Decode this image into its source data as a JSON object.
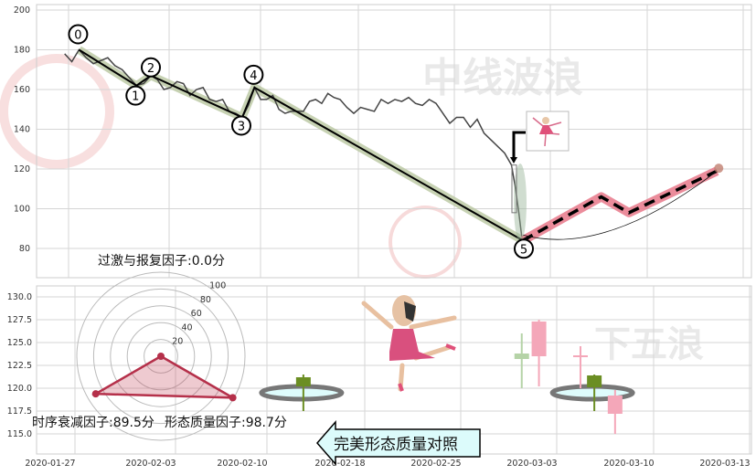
{
  "watermarks": {
    "top": "中线波浪",
    "bottom_right": "下五浪"
  },
  "colors": {
    "zigzag": "#000000",
    "zigzag_halo": "#b9c7a0",
    "forecast": "#e8788a",
    "forecast_dash": "#000000",
    "price": "#444444",
    "candle_up": "#f4a7b9",
    "candle_down": "#6b8e23",
    "candle_down_light": "#b5d3a7",
    "radar": "#b5304a"
  },
  "chart_data": [
    {
      "type": "line",
      "ylim": [
        63,
        200
      ],
      "yticks": [
        200,
        180,
        160,
        140,
        120,
        100,
        80
      ],
      "grid": true,
      "price": [
        [
          "2020-01-28",
          178
        ],
        [
          "2020-01-28T12:00",
          174
        ],
        [
          "2020-01-29",
          180
        ],
        [
          "2020-01-29T12:00",
          176
        ],
        [
          "2020-01-30",
          173
        ],
        [
          "2020-01-31",
          176
        ],
        [
          "2020-01-31T12:00",
          172
        ],
        [
          "2020-02-01",
          170
        ],
        [
          "2020-02-01T12:00",
          166
        ],
        [
          "2020-02-02",
          162
        ],
        [
          "2020-02-02T12:00",
          163
        ],
        [
          "2020-02-03",
          167
        ],
        [
          "2020-02-03T12:00",
          165
        ],
        [
          "2020-02-04",
          160
        ],
        [
          "2020-02-04T12:00",
          161
        ],
        [
          "2020-02-05",
          164
        ],
        [
          "2020-02-05T12:00",
          163
        ],
        [
          "2020-02-06",
          157
        ],
        [
          "2020-02-06T12:00",
          160
        ],
        [
          "2020-02-07",
          161
        ],
        [
          "2020-02-07T12:00",
          155
        ],
        [
          "2020-02-08",
          154
        ],
        [
          "2020-02-08T12:00",
          155
        ],
        [
          "2020-02-09",
          149
        ],
        [
          "2020-02-09T12:00",
          148
        ],
        [
          "2020-02-10",
          146
        ],
        [
          "2020-02-10T12:00",
          152
        ],
        [
          "2020-02-11",
          161
        ],
        [
          "2020-02-11T12:00",
          155
        ],
        [
          "2020-02-12",
          155
        ],
        [
          "2020-02-12T12:00",
          157
        ],
        [
          "2020-02-13",
          150
        ],
        [
          "2020-02-13T12:00",
          148
        ],
        [
          "2020-02-14",
          149
        ],
        [
          "2020-02-15",
          149
        ],
        [
          "2020-02-15T12:00",
          154
        ],
        [
          "2020-02-16",
          155
        ],
        [
          "2020-02-16T12:00",
          153
        ],
        [
          "2020-02-17",
          158
        ],
        [
          "2020-02-17T12:00",
          156
        ],
        [
          "2020-02-18",
          155
        ],
        [
          "2020-02-18T12:00",
          151
        ],
        [
          "2020-02-19",
          148
        ],
        [
          "2020-02-19T12:00",
          151
        ],
        [
          "2020-02-20",
          150
        ],
        [
          "2020-02-20T12:00",
          149
        ],
        [
          "2020-02-21",
          155
        ],
        [
          "2020-02-21T12:00",
          153
        ],
        [
          "2020-02-22",
          155
        ],
        [
          "2020-02-22T12:00",
          154
        ],
        [
          "2020-02-23",
          156
        ],
        [
          "2020-02-23T12:00",
          153
        ],
        [
          "2020-02-24",
          152
        ],
        [
          "2020-02-24T12:00",
          155
        ],
        [
          "2020-02-25",
          153
        ],
        [
          "2020-02-25T12:00",
          148
        ],
        [
          "2020-02-26",
          143
        ],
        [
          "2020-02-26T12:00",
          146
        ],
        [
          "2020-02-27",
          146
        ],
        [
          "2020-02-27T12:00",
          141
        ],
        [
          "2020-02-28",
          145
        ],
        [
          "2020-02-28T12:00",
          138
        ],
        [
          "2020-03-01",
          128
        ],
        [
          "2020-03-01T12:00",
          122
        ],
        [
          "2020-03-01T18:00",
          112
        ],
        [
          "2020-03-02",
          100
        ],
        [
          "2020-03-02T06:00",
          86
        ],
        [
          "2020-03-02T08:00",
          84
        ]
      ],
      "wave_points": [
        {
          "label": "0",
          "date": "2020-01-29",
          "value": 180
        },
        {
          "label": "1",
          "date": "2020-02-02",
          "value": 162
        },
        {
          "label": "2",
          "date": "2020-02-03",
          "value": 167
        },
        {
          "label": "3",
          "date": "2020-02-10",
          "value": 146
        },
        {
          "label": "4",
          "date": "2020-02-11",
          "value": 161
        },
        {
          "label": "5",
          "date": "2020-03-02T08:00",
          "value": 84
        }
      ],
      "forecast": [
        {
          "date": "2020-03-02T08:00",
          "value": 84
        },
        {
          "date": "2020-03-08",
          "value": 106
        },
        {
          "date": "2020-03-10",
          "value": 98
        },
        {
          "date": "2020-03-12T18:00",
          "value": 119
        }
      ]
    },
    {
      "type": "candlestick",
      "ylim": [
        112.5,
        131.2
      ],
      "yticks": [
        "130.0",
        "127.5",
        "125.0",
        "122.5",
        "120.0",
        "117.5",
        "115.0"
      ],
      "grid": true,
      "candles": [
        {
          "date": "2020-02-15",
          "open": 121.2,
          "close": 120.2,
          "high": 121.5,
          "low": 117.5,
          "color": "candle_down"
        },
        {
          "date": "2020-03-02T06:00",
          "open": 123.8,
          "close": 123.2,
          "high": 126.0,
          "low": 120.0,
          "color": "candle_down_light"
        },
        {
          "date": "2020-03-03T12:00",
          "open": 123.5,
          "close": 127.3,
          "high": 127.5,
          "low": 120.2,
          "color": "candle_up"
        },
        {
          "date": "2020-03-06T12:00",
          "open": 123.5,
          "close": 123.6,
          "high": 124.6,
          "low": 120.0,
          "color": "candle_up"
        },
        {
          "date": "2020-03-07T12:00",
          "open": 121.4,
          "close": 120.1,
          "high": 121.5,
          "low": 117.5,
          "color": "candle_down"
        },
        {
          "date": "2020-03-09",
          "open": 117.2,
          "close": 119.2,
          "high": 119.8,
          "low": 115.0,
          "color": "candle_up"
        }
      ],
      "highlight_dates": [
        "2020-02-15",
        "2020-03-07T12:00"
      ]
    },
    {
      "type": "radar",
      "rticks": [
        "20",
        "40",
        "60",
        "80",
        "100"
      ],
      "rmax": 100,
      "factors": [
        {
          "name": "过激与报复因子",
          "value": 0.0,
          "label": "过激与报复因子:0.0分"
        },
        {
          "name": "时序衰减因子",
          "value": 89.5,
          "label": "时序衰减因子:89.5分"
        },
        {
          "name": "形态质量因子",
          "value": 98.7,
          "label": "形态质量因子:98.7分"
        }
      ]
    }
  ],
  "xticks": [
    "2020-01-27",
    "2020-02-03",
    "2020-02-10",
    "2020-02-18",
    "2020-02-25",
    "2020-03-03",
    "2020-03-10",
    "2020-03-13"
  ],
  "callout": "完美形态质量对照"
}
